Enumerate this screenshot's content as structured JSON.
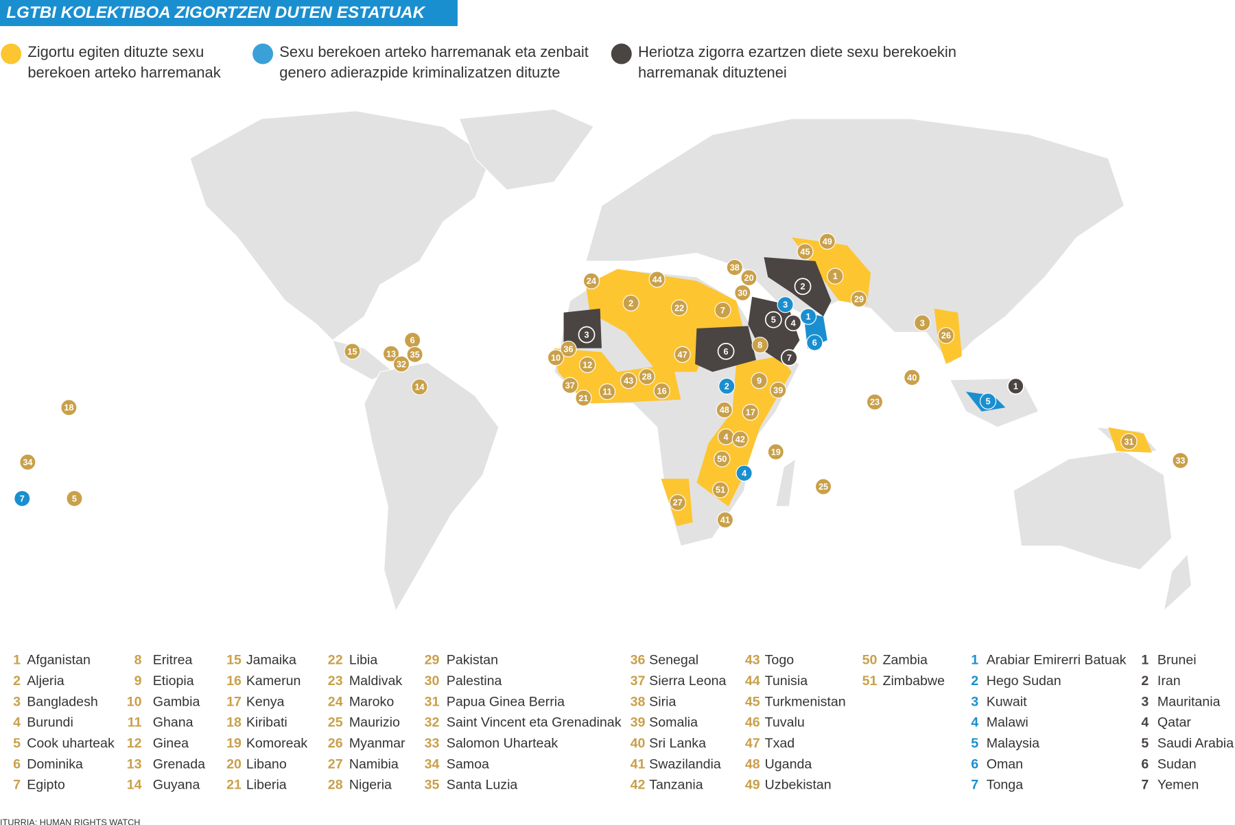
{
  "title": "LGTBI KOLEKTIBOA ZIGORTZEN DUTEN ESTATUAK",
  "legend": [
    {
      "lines": [
        "Zigortu egiten dituzte sexu",
        "berekoen arteko harremanak"
      ],
      "color": "#fdc530",
      "marker_color": "#c9a04a"
    },
    {
      "lines": [
        "Sexu berekoen arteko harremanak eta zenbait",
        "genero adierazpide kriminalizatzen dituzte"
      ],
      "color": "#3aa0d8",
      "marker_color": "#1a8fd0"
    },
    {
      "lines": [
        "Heriotza zigorra ezartzen diete sexu berekoekin",
        "harremanak dituztenei"
      ],
      "color": "#4a4442",
      "marker_color": "#4a4442"
    }
  ],
  "groups": [
    {
      "countries": [
        {
          "number": 1,
          "name": "Afganistan"
        },
        {
          "number": 2,
          "name": "Aljeria"
        },
        {
          "number": 3,
          "name": "Bangladesh"
        },
        {
          "number": 4,
          "name": "Burundi"
        },
        {
          "number": 5,
          "name": "Cook uharteak"
        },
        {
          "number": 6,
          "name": "Dominika"
        },
        {
          "number": 7,
          "name": "Egipto"
        },
        {
          "number": 8,
          "name": "Eritrea"
        },
        {
          "number": 9,
          "name": "Etiopia"
        },
        {
          "number": 10,
          "name": "Gambia"
        },
        {
          "number": 11,
          "name": "Ghana"
        },
        {
          "number": 12,
          "name": "Ginea"
        },
        {
          "number": 13,
          "name": "Grenada"
        },
        {
          "number": 14,
          "name": "Guyana"
        },
        {
          "number": 15,
          "name": "Jamaika"
        },
        {
          "number": 16,
          "name": "Kamerun"
        },
        {
          "number": 17,
          "name": "Kenya"
        },
        {
          "number": 18,
          "name": "Kiribati"
        },
        {
          "number": 19,
          "name": "Komoreak"
        },
        {
          "number": 20,
          "name": "Libano"
        },
        {
          "number": 21,
          "name": "Liberia"
        },
        {
          "number": 22,
          "name": "Libia"
        },
        {
          "number": 23,
          "name": "Maldivak"
        },
        {
          "number": 24,
          "name": "Maroko"
        },
        {
          "number": 25,
          "name": "Maurizio"
        },
        {
          "number": 26,
          "name": "Myanmar"
        },
        {
          "number": 27,
          "name": "Namibia"
        },
        {
          "number": 28,
          "name": "Nigeria"
        },
        {
          "number": 29,
          "name": "Pakistan"
        },
        {
          "number": 30,
          "name": "Palestina"
        },
        {
          "number": 31,
          "name": "Papua Ginea Berria"
        },
        {
          "number": 32,
          "name": "Saint Vincent eta Grenadinak"
        },
        {
          "number": 33,
          "name": "Salomon Uharteak"
        },
        {
          "number": 34,
          "name": "Samoa"
        },
        {
          "number": 35,
          "name": "Santa Luzia"
        },
        {
          "number": 36,
          "name": "Senegal"
        },
        {
          "number": 37,
          "name": "Sierra Leona"
        },
        {
          "number": 38,
          "name": "Siria"
        },
        {
          "number": 39,
          "name": "Somalia"
        },
        {
          "number": 40,
          "name": "Sri Lanka"
        },
        {
          "number": 41,
          "name": "Swazilandia"
        },
        {
          "number": 42,
          "name": "Tanzania"
        },
        {
          "number": 43,
          "name": "Togo"
        },
        {
          "number": 44,
          "name": "Tunisia"
        },
        {
          "number": 45,
          "name": "Turkmenistan"
        },
        {
          "number": 46,
          "name": "Tuvalu"
        },
        {
          "number": 47,
          "name": "Txad"
        },
        {
          "number": 48,
          "name": "Uganda"
        },
        {
          "number": 49,
          "name": "Uzbekistan"
        },
        {
          "number": 50,
          "name": "Zambia"
        },
        {
          "number": 51,
          "name": "Zimbabwe"
        }
      ]
    },
    {
      "countries": [
        {
          "number": 1,
          "name": "Arabiar Emirerri Batuak"
        },
        {
          "number": 2,
          "name": "Hego Sudan"
        },
        {
          "number": 3,
          "name": "Kuwait"
        },
        {
          "number": 4,
          "name": "Malawi"
        },
        {
          "number": 5,
          "name": "Malaysia"
        },
        {
          "number": 6,
          "name": "Oman"
        },
        {
          "number": 7,
          "name": "Tonga"
        }
      ]
    },
    {
      "countries": [
        {
          "number": 1,
          "name": "Brunei"
        },
        {
          "number": 2,
          "name": "Iran"
        },
        {
          "number": 3,
          "name": "Mauritania"
        },
        {
          "number": 4,
          "name": "Qatar"
        },
        {
          "number": 5,
          "name": "Saudi Arabia"
        },
        {
          "number": 6,
          "name": "Sudan"
        },
        {
          "number": 7,
          "name": "Yemen"
        }
      ]
    }
  ],
  "source": "ITURRIA: HUMAN RIGHTS WATCH"
}
